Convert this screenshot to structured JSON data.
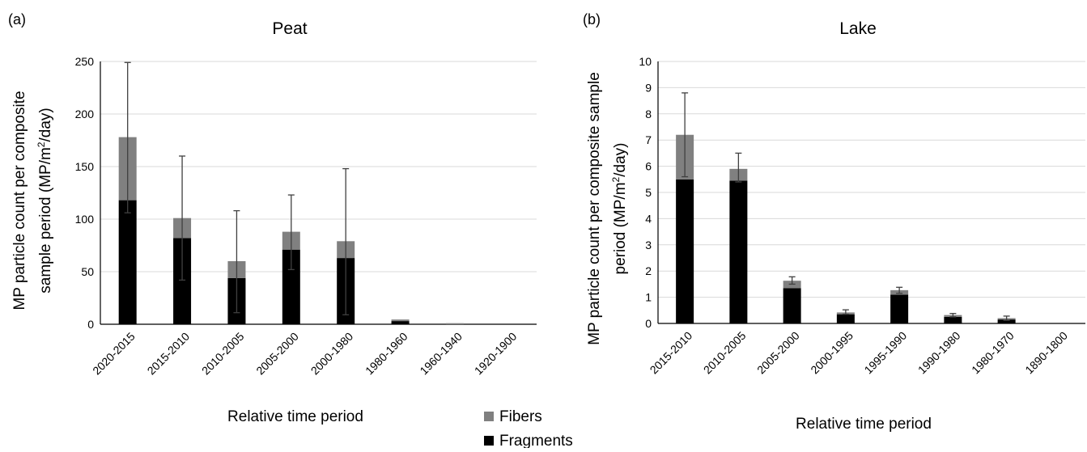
{
  "legend": {
    "fibers_label": "Fibers",
    "fragments_label": "Fragments",
    "fibers_color": "#808080",
    "fragments_color": "#000000"
  },
  "chart_data": [
    {
      "panel": "(a)",
      "type": "bar",
      "stacked": true,
      "title": "Peat",
      "xlabel": "Relative time period",
      "ylabel_line1": "MP particle count per composite",
      "ylabel_line2_prefix": "sample period (MP/m",
      "ylabel_sup": "2",
      "ylabel_line2_suffix": "/day)",
      "ylim": [
        0,
        250
      ],
      "yticks": [
        0,
        50,
        100,
        150,
        200,
        250
      ],
      "grid": true,
      "categories": [
        "2020-2015",
        "2015-2010",
        "2010-2005",
        "2005-2000",
        "2000-1980",
        "1980-1960",
        "1960-1940",
        "1920-1900"
      ],
      "series": [
        {
          "name": "Fragments",
          "values": [
            118,
            82,
            44,
            71,
            63,
            3,
            0,
            0
          ]
        },
        {
          "name": "Fibers",
          "values": [
            60,
            19,
            16,
            17,
            16,
            1.5,
            1,
            0
          ]
        }
      ],
      "error_low": [
        106,
        42,
        11,
        52,
        9,
        null,
        null,
        null
      ],
      "error_high": [
        249,
        160,
        108,
        123,
        148,
        null,
        null,
        null
      ]
    },
    {
      "panel": "(b)",
      "type": "bar",
      "stacked": true,
      "title": "Lake",
      "xlabel": "Relative time period",
      "ylabel_line1": "MP particle count per composite sample",
      "ylabel_line2_prefix": "period (MP/m",
      "ylabel_sup": "2",
      "ylabel_line2_suffix": "/day)",
      "ylim": [
        0,
        10
      ],
      "yticks": [
        0,
        1,
        2,
        3,
        4,
        5,
        6,
        7,
        8,
        9,
        10
      ],
      "grid": true,
      "categories": [
        "2015-2010",
        "2010-2005",
        "2005-2000",
        "2000-1995",
        "1995-1990",
        "1990-1980",
        "1980-1970",
        "1890-1800"
      ],
      "series": [
        {
          "name": "Fragments",
          "values": [
            5.5,
            5.45,
            1.35,
            0.35,
            1.1,
            0.25,
            0.15,
            0
          ]
        },
        {
          "name": "Fibers",
          "values": [
            1.7,
            0.45,
            0.28,
            0.07,
            0.17,
            0.07,
            0.05,
            0
          ]
        }
      ],
      "error_low": [
        5.6,
        5.4,
        1.5,
        0.35,
        1.15,
        0.25,
        0.12,
        null
      ],
      "error_high": [
        8.8,
        6.5,
        1.78,
        0.52,
        1.38,
        0.38,
        0.28,
        null
      ]
    }
  ]
}
